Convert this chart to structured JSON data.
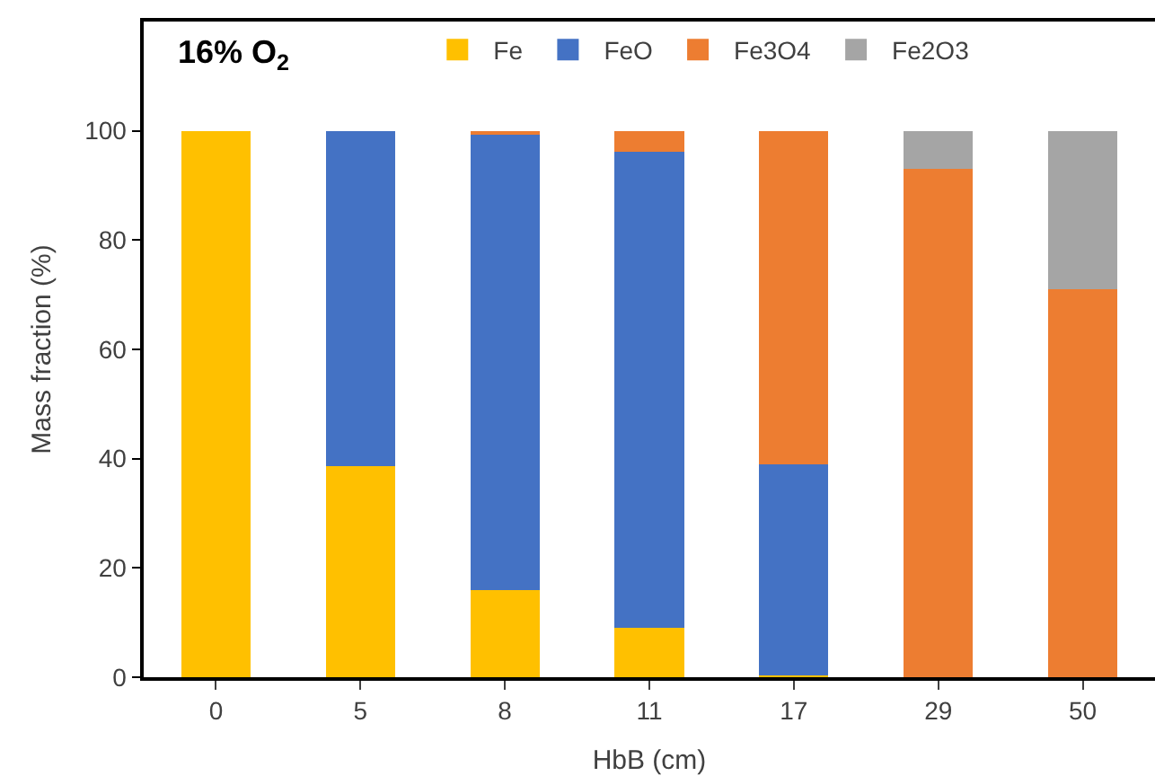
{
  "chart_data": {
    "type": "bar",
    "stacked": true,
    "title": "16% O$_{2}$",
    "xlabel": "HbB (cm)",
    "ylabel": "Mass fraction (%)",
    "categories": [
      "0",
      "5",
      "8",
      "11",
      "17",
      "29",
      "50"
    ],
    "series": [
      {
        "name": "Fe",
        "color": "#ffc000",
        "values": [
          100,
          38.6,
          16,
          9,
          0.3,
          0,
          0
        ]
      },
      {
        "name": "FeO",
        "color": "#4472c4",
        "values": [
          0,
          61.4,
          83.3,
          87.2,
          38.7,
          0,
          0
        ]
      },
      {
        "name": "Fe3O4",
        "color": "#ed7d31",
        "values": [
          0,
          0,
          0.7,
          3.8,
          61,
          93,
          71
        ]
      },
      {
        "name": "Fe2O3",
        "color": "#a5a5a5",
        "values": [
          0,
          0,
          0,
          0,
          0,
          7,
          29
        ]
      }
    ],
    "ylim": [
      0,
      120
    ],
    "yticks": [
      0,
      20,
      40,
      60,
      80,
      100
    ],
    "legend": "top"
  }
}
